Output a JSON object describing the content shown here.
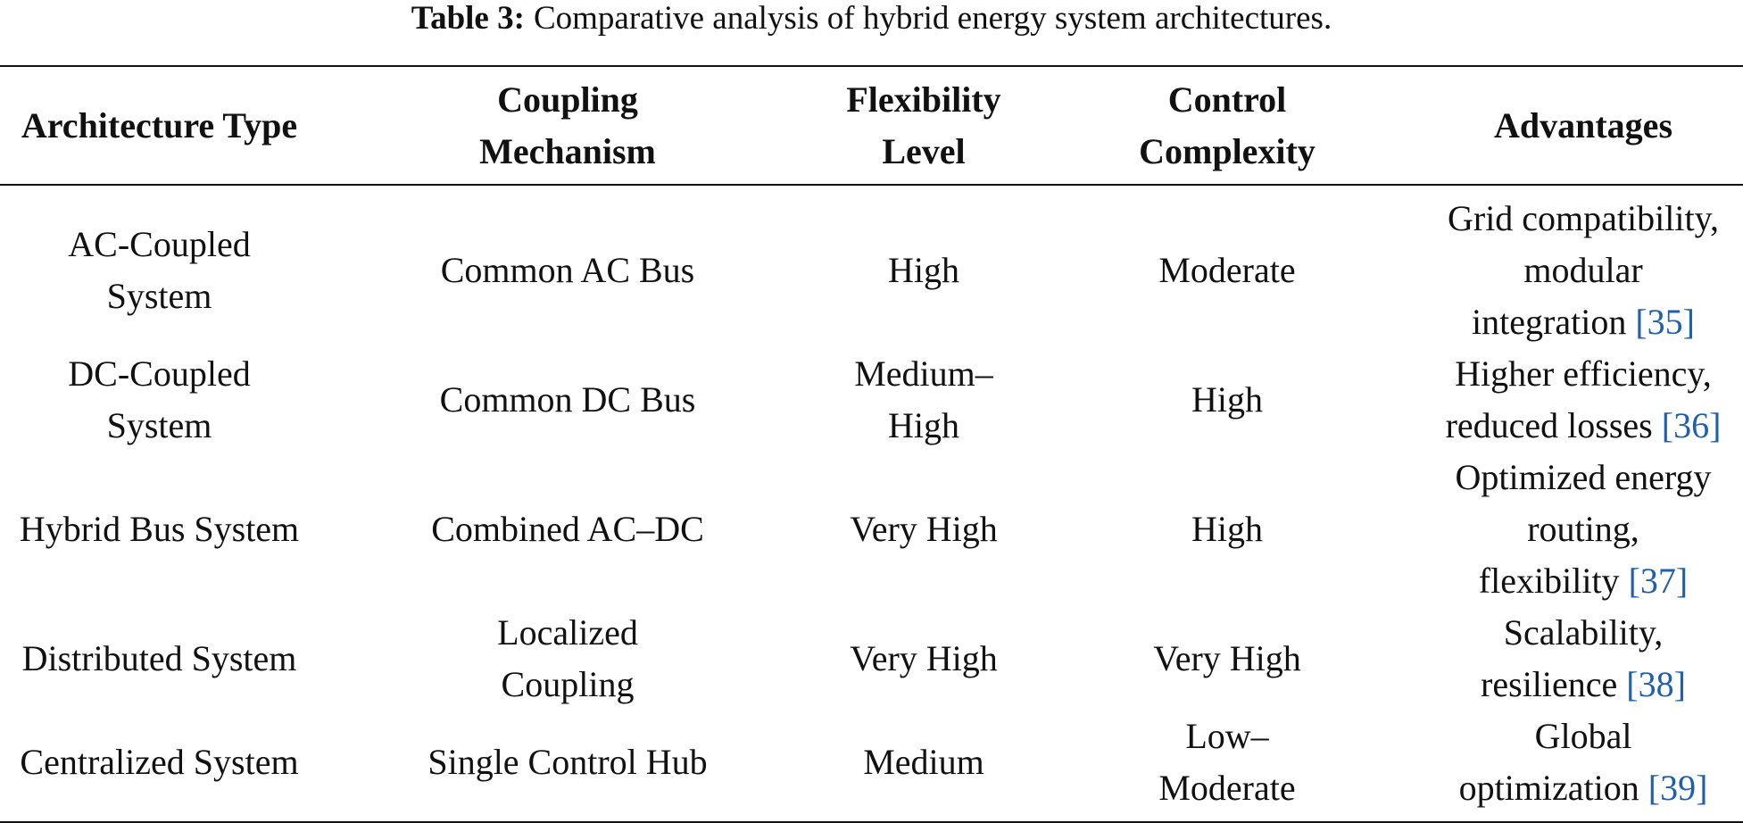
{
  "caption": {
    "label": "Table 3:",
    "text": "Comparative analysis of hybrid energy system architectures."
  },
  "table": {
    "headers": [
      [
        "Architecture Type"
      ],
      [
        "Coupling",
        "Mechanism"
      ],
      [
        "Flexibility",
        "Level"
      ],
      [
        "Control",
        "Complexity"
      ],
      [
        "Advantages"
      ]
    ],
    "rows": [
      {
        "cells": [
          [
            "AC-Coupled",
            "System"
          ],
          [
            "Common AC Bus"
          ],
          [
            "High"
          ],
          [
            "Moderate"
          ],
          [
            "Grid compatibility,",
            "modular",
            "integration"
          ]
        ],
        "citation": "[35]"
      },
      {
        "cells": [
          [
            "DC-Coupled",
            "System"
          ],
          [
            "Common DC Bus"
          ],
          [
            "Medium–",
            "High"
          ],
          [
            "High"
          ],
          [
            "Higher efficiency,",
            "reduced losses"
          ]
        ],
        "citation": "[36]"
      },
      {
        "cells": [
          [
            "Hybrid Bus System"
          ],
          [
            "Combined AC–DC"
          ],
          [
            "Very High"
          ],
          [
            "High"
          ],
          [
            "Optimized energy",
            "routing,",
            "flexibility"
          ]
        ],
        "citation": "[37]"
      },
      {
        "cells": [
          [
            "Distributed System"
          ],
          [
            "Localized",
            "Coupling"
          ],
          [
            "Very High"
          ],
          [
            "Very High"
          ],
          [
            "Scalability,",
            "resilience"
          ]
        ],
        "citation": "[38]"
      },
      {
        "cells": [
          [
            "Centralized System"
          ],
          [
            "Single Control Hub"
          ],
          [
            "Medium"
          ],
          [
            "Low–",
            "Moderate"
          ],
          [
            "Global",
            "optimization"
          ]
        ],
        "citation": "[39]"
      }
    ]
  }
}
